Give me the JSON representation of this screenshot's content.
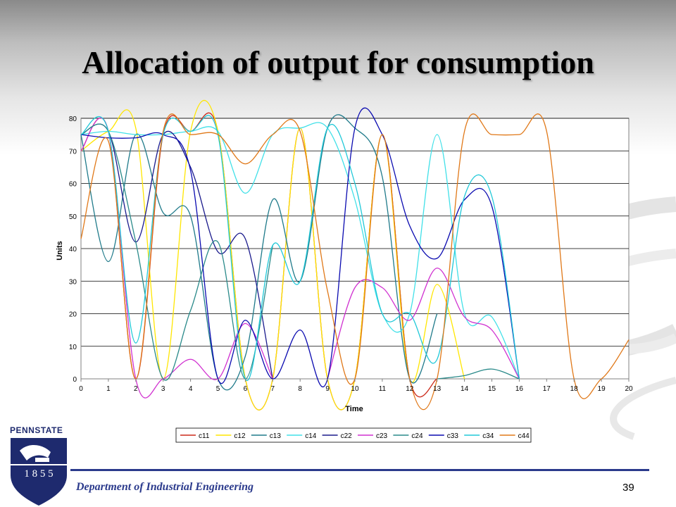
{
  "slide": {
    "title": "Allocation of output for consumption",
    "footer_department": "Department of Industrial Engineering",
    "page_number": "39",
    "logo_text": "PENNSTATE",
    "logo_year": "1 8 5 5"
  },
  "colors": {
    "c11": "#cc2a1a",
    "c12": "#ffe600",
    "c13": "#1f7a8a",
    "c14": "#40e0e8",
    "c22": "#1a1a8c",
    "c23": "#d030d0",
    "c24": "#2a8a8a",
    "c33": "#0a0ab0",
    "c34": "#20c8d8",
    "c44": "#e07818",
    "footer_blue": "#2b3a8c"
  },
  "chart_data": {
    "type": "line",
    "xlabel": "Time",
    "ylabel": "Units",
    "xlim": [
      0,
      20
    ],
    "ylim": [
      0,
      80
    ],
    "x_ticks": [
      0,
      1,
      2,
      3,
      4,
      5,
      6,
      7,
      8,
      9,
      10,
      11,
      12,
      13,
      14,
      15,
      16,
      17,
      18,
      19,
      20
    ],
    "y_ticks": [
      0,
      10,
      20,
      30,
      40,
      50,
      60,
      70,
      80
    ],
    "grid": "horizontal",
    "legend_position": "bottom",
    "x": [
      0,
      1,
      2,
      3,
      4,
      5,
      6,
      7,
      8,
      9,
      10,
      11,
      12,
      13,
      14,
      15,
      16,
      17,
      18,
      19,
      20
    ],
    "series": [
      {
        "name": "c11",
        "color": "#cc2a1a",
        "values": [
          70,
          76,
          0,
          75,
          76,
          76,
          0,
          0,
          77,
          0,
          0,
          75,
          0,
          0,
          null,
          null,
          null,
          null,
          null,
          null,
          null
        ]
      },
      {
        "name": "c12",
        "color": "#ffe600",
        "values": [
          70,
          76,
          77,
          0,
          76,
          76,
          0,
          0,
          77,
          0,
          0,
          75,
          0,
          29,
          0,
          null,
          null,
          null,
          null,
          null,
          null
        ]
      },
      {
        "name": "c13",
        "color": "#1f7a8a",
        "values": [
          75,
          36,
          75,
          51,
          50,
          0,
          7,
          55,
          30,
          77,
          77,
          62,
          0,
          20,
          null,
          null,
          null,
          null,
          null,
          null,
          null
        ]
      },
      {
        "name": "c14",
        "color": "#40e0e8",
        "values": [
          75,
          76,
          75,
          75,
          76,
          76,
          57,
          75,
          77,
          77,
          55,
          20,
          20,
          75,
          20,
          19,
          0,
          null,
          null,
          null,
          null
        ]
      },
      {
        "name": "c22",
        "color": "#1a1a8c",
        "values": [
          75,
          76,
          42,
          75,
          65,
          39,
          43,
          0,
          null,
          null,
          null,
          null,
          null,
          null,
          null,
          null,
          null,
          null,
          null,
          null,
          null
        ]
      },
      {
        "name": "c23",
        "color": "#d030d0",
        "values": [
          70,
          76,
          0,
          0,
          6,
          0,
          17,
          0,
          null,
          0,
          28,
          28,
          18,
          34,
          19,
          15,
          0,
          null,
          null,
          null,
          null
        ]
      },
      {
        "name": "c24",
        "color": "#2a8a8a",
        "values": [
          75,
          76,
          42,
          0,
          21,
          42,
          0,
          41,
          null,
          null,
          null,
          null,
          null,
          0,
          1,
          3,
          0,
          null,
          null,
          null,
          null
        ]
      },
      {
        "name": "c33",
        "color": "#0a0ab0",
        "values": [
          75,
          74,
          74,
          75,
          64,
          0,
          18,
          0,
          15,
          0,
          77,
          75,
          47,
          37,
          55,
          53,
          0,
          null,
          null,
          null,
          null
        ]
      },
      {
        "name": "c34",
        "color": "#20c8d8",
        "values": [
          75,
          76,
          11,
          75,
          76,
          75,
          0,
          41,
          30,
          77,
          60,
          20,
          20,
          6,
          56,
          56,
          0,
          null,
          null,
          null,
          null
        ]
      },
      {
        "name": "c44",
        "color": "#e07818",
        "values": [
          43,
          73,
          0,
          76,
          75,
          75,
          66,
          75,
          76,
          27,
          0,
          75,
          0,
          0,
          76,
          75,
          75,
          76,
          0,
          0,
          12
        ]
      }
    ]
  }
}
